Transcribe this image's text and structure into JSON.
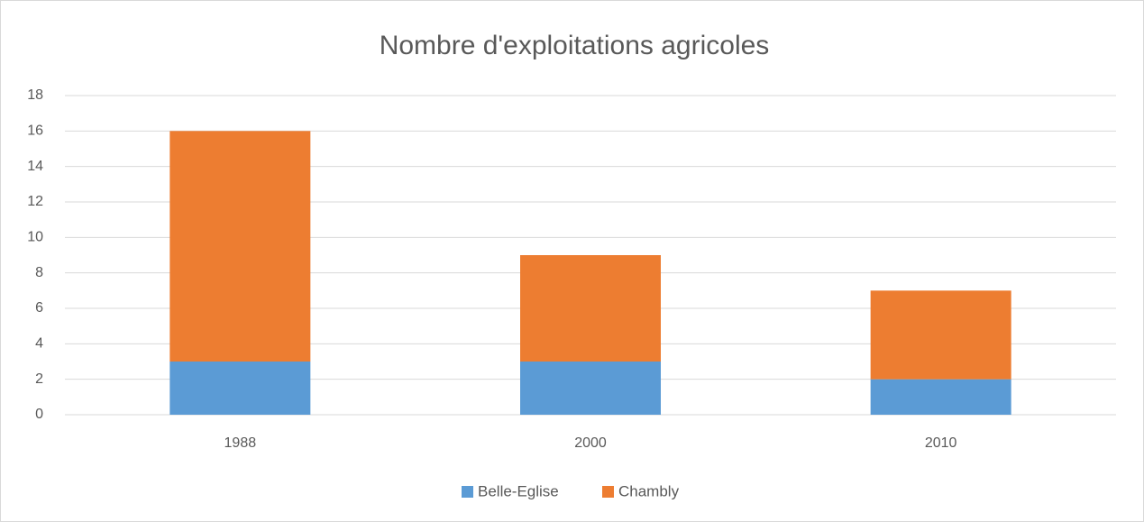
{
  "chart_data": {
    "type": "stacked_bar",
    "title": "Nombre d'exploitations agricoles",
    "categories": [
      "1988",
      "2000",
      "2010"
    ],
    "series": [
      {
        "name": "Belle-Eglise",
        "color": "#5b9bd5",
        "values": [
          3,
          3,
          2
        ]
      },
      {
        "name": "Chambly",
        "color": "#ed7d31",
        "values": [
          13,
          6,
          5
        ]
      }
    ],
    "ylim": [
      0,
      18
    ],
    "yticks": [
      0,
      2,
      4,
      6,
      8,
      10,
      12,
      14,
      16,
      18
    ],
    "grid": true,
    "legend": "bottom"
  }
}
